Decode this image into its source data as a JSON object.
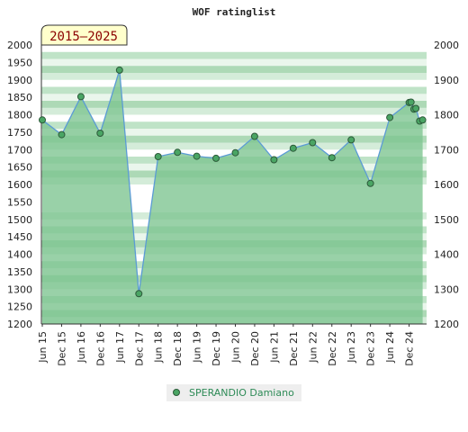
{
  "chart_data": {
    "type": "area",
    "title": "WOF ratinglist",
    "period_label": "2015–2025",
    "xlabel": "",
    "ylabel": "",
    "ylim": [
      1200,
      2000
    ],
    "yticks": [
      1200,
      1250,
      1300,
      1350,
      1400,
      1450,
      1500,
      1550,
      1600,
      1650,
      1700,
      1750,
      1800,
      1850,
      1900,
      1950,
      2000
    ],
    "yticks_right": [
      1200,
      1300,
      1400,
      1500,
      1600,
      1700,
      1800,
      1900,
      2000
    ],
    "xtick_labels": [
      "Jun 15",
      "Dec 15",
      "Jun 16",
      "Dec 16",
      "Jun 17",
      "Dec 17",
      "Jun 18",
      "Dec 18",
      "Jun 19",
      "Dec 19",
      "Jun 20",
      "Dec 20",
      "Jun 21",
      "Dec 21",
      "Jun 22",
      "Dec 22",
      "Jun 23",
      "Dec 23",
      "Jun 24",
      "Dec 24"
    ],
    "grid": true,
    "legend_position": "bottom-center",
    "colors": {
      "line": "#5b9bd5",
      "fill": "#7cc48f",
      "marker": "#4aa564",
      "legend_text": "#2e8b57",
      "badge_bg": "#ffffcc",
      "badge_text": "#8b0000"
    },
    "series": [
      {
        "name": "SPERANDIO Damiano",
        "x": [
          0,
          1,
          2,
          3,
          4,
          5,
          6,
          7,
          8,
          9,
          10,
          11,
          12,
          13,
          14,
          15,
          16,
          17,
          18,
          19,
          19.1,
          19.25,
          19.35,
          19.55,
          19.7
        ],
        "values": [
          1785,
          1743,
          1852,
          1747,
          1928,
          1287,
          1680,
          1692,
          1681,
          1675,
          1691,
          1738,
          1671,
          1704,
          1720,
          1677,
          1728,
          1603,
          1792,
          1835,
          1836,
          1816,
          1818,
          1782,
          1785
        ]
      }
    ]
  }
}
